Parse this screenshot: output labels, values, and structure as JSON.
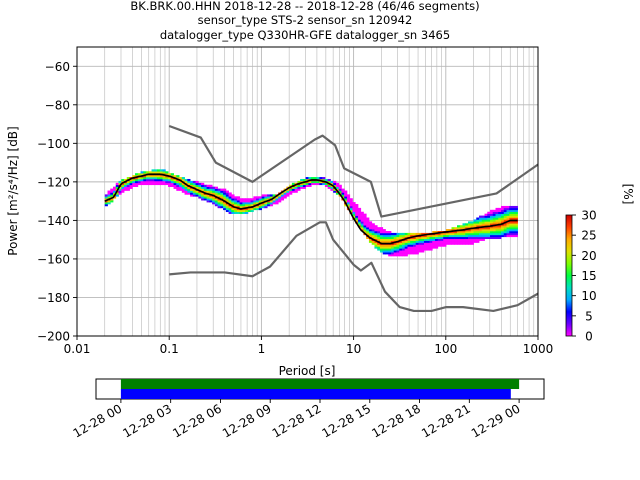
{
  "title_lines": [
    "BK.BRK.00.HHN   2018-12-28 -- 2018-12-28  (46/46 segments)",
    "sensor_type STS-2 sensor_sn 120942",
    "datalogger_type Q330HR-GFE datalogger_sn 3465"
  ],
  "chart_data": [
    {
      "type": "heatmap",
      "xlabel": "Period [s]",
      "ylabel": "Power [m²/s⁴/Hz] [dB]",
      "xscale": "log",
      "xlim": [
        0.01,
        1000
      ],
      "ylim": [
        -200,
        -50
      ],
      "x_ticks": [
        0.01,
        0.1,
        1,
        10,
        100,
        1000
      ],
      "x_tick_labels": [
        "0.01",
        "0.1",
        "1",
        "10",
        "100",
        "1000"
      ],
      "y_ticks": [
        -200,
        -180,
        -160,
        -140,
        -120,
        -100,
        -80,
        -60
      ],
      "y_tick_labels": [
        "−200",
        "−180",
        "−160",
        "−140",
        "−120",
        "−100",
        "−80",
        "−60"
      ],
      "grid": true,
      "colorbar": {
        "label": "[%]",
        "range": [
          0,
          30
        ],
        "ticks": [
          0,
          5,
          10,
          15,
          20,
          25,
          30
        ],
        "colormap": [
          "#ff00ff",
          "#6a00ff",
          "#0000ff",
          "#00aaff",
          "#00e0c0",
          "#00ff40",
          "#80ff00",
          "#e0e000",
          "#ffaa00",
          "#ff4000",
          "#cc0000"
        ]
      },
      "psd_mode": {
        "x": [
          0.02,
          0.025,
          0.03,
          0.04,
          0.05,
          0.06,
          0.08,
          0.1,
          0.13,
          0.16,
          0.2,
          0.25,
          0.3,
          0.4,
          0.5,
          0.6,
          0.8,
          1.0,
          1.3,
          1.6,
          2.0,
          2.5,
          3.0,
          3.5,
          4.0,
          5.0,
          6.0,
          7.0,
          8.0,
          10,
          12,
          15,
          20,
          25,
          30,
          40,
          50,
          70,
          100,
          150,
          200,
          300,
          400,
          500,
          600
        ],
        "y": [
          -130,
          -128,
          -121,
          -118,
          -117,
          -116,
          -116,
          -117,
          -119,
          -122,
          -124,
          -126,
          -127,
          -130,
          -133,
          -134,
          -133,
          -131,
          -129,
          -126,
          -123,
          -121,
          -120,
          -119,
          -119,
          -120,
          -122,
          -126,
          -130,
          -139,
          -145,
          -149,
          -152,
          -152,
          -151,
          -149,
          -148,
          -147,
          -146,
          -145,
          -144,
          -143,
          -142,
          -140,
          -140
        ]
      },
      "psd_spread": {
        "x": [
          0.02,
          0.03,
          0.05,
          0.08,
          0.1,
          0.15,
          0.2,
          0.3,
          0.4,
          0.5,
          0.7,
          1.0,
          1.5,
          2.0,
          3.0,
          4.0,
          5.0,
          7.0,
          10,
          15,
          20,
          30,
          50,
          100,
          200,
          300,
          400,
          600
        ],
        "upper": [
          -127,
          -119,
          -115,
          -113,
          -115,
          -118,
          -120,
          -122,
          -124,
          -127,
          -129,
          -127,
          -126,
          -122,
          -118,
          -117,
          -118,
          -121,
          -130,
          -140,
          -144,
          -147,
          -147,
          -145,
          -140,
          -135,
          -133,
          -132
        ],
        "lower": [
          -133,
          -126,
          -121,
          -121,
          -122,
          -126,
          -128,
          -131,
          -135,
          -137,
          -136,
          -134,
          -131,
          -127,
          -123,
          -121,
          -122,
          -127,
          -139,
          -151,
          -157,
          -159,
          -157,
          -153,
          -152,
          -149,
          -149,
          -148
        ]
      },
      "nhnm": {
        "x": [
          0.1,
          0.22,
          0.32,
          0.8,
          3.8,
          4.6,
          6.3,
          7.9,
          15.4,
          20,
          354.8,
          1000
        ],
        "y": [
          -91,
          -97,
          -110,
          -120,
          -98,
          -96,
          -101,
          -113,
          -120,
          -138,
          -126,
          -111
        ]
      },
      "nlnm": {
        "x": [
          0.1,
          0.17,
          0.4,
          0.8,
          1.24,
          2.4,
          4.3,
          5.0,
          6.0,
          10,
          12,
          15.6,
          21.9,
          31.6,
          45,
          70,
          101,
          154,
          328,
          600,
          1000
        ],
        "y": [
          -168,
          -167,
          -167,
          -169,
          -164,
          -148,
          -141,
          -141,
          -150,
          -163,
          -166,
          -162,
          -177,
          -185,
          -187,
          -187,
          -185,
          -185,
          -187,
          -184,
          -178
        ]
      }
    },
    {
      "type": "timeline",
      "x_tick_labels": [
        "12-28 00",
        "12-28 03",
        "12-28 06",
        "12-28 09",
        "12-28 12",
        "12-28 15",
        "12-28 18",
        "12-28 21",
        "12-29 00"
      ],
      "x_range_hours": [
        -1.5,
        25.5
      ],
      "bars": [
        {
          "color": "#008000",
          "start_hour": 0.0,
          "end_hour": 24.0
        },
        {
          "color": "#0000ff",
          "start_hour": 0.0,
          "end_hour": 23.5
        }
      ]
    }
  ]
}
